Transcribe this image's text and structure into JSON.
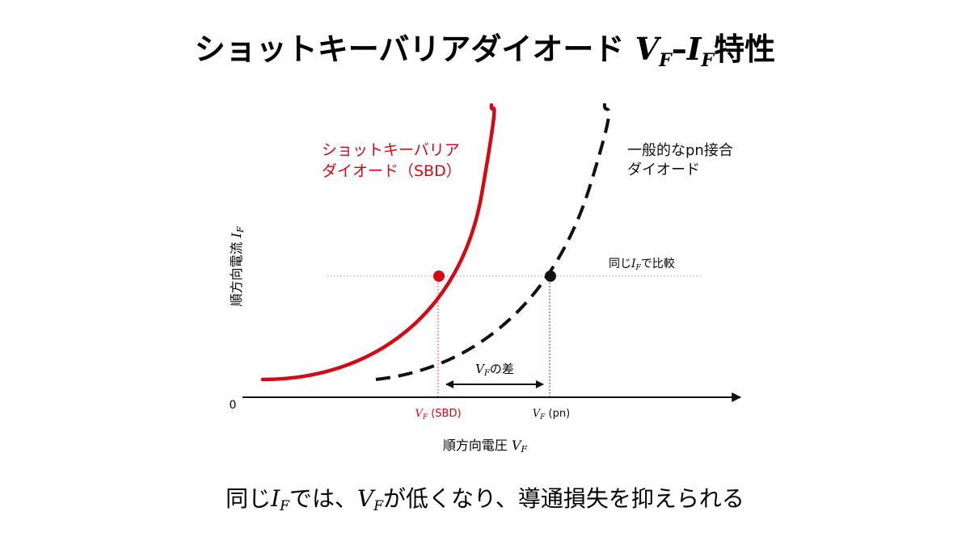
{
  "title": {
    "main": "ショットキーバリアダイオード ",
    "v": "V",
    "f1": "F",
    "dash": "–",
    "i": "I",
    "f2": "F",
    "suffix": "特性"
  },
  "axes": {
    "origin": "0",
    "x_label": "順方向電圧 ",
    "x_symbol": "V",
    "x_sub": "F",
    "y_label": "順方向電流 ",
    "y_symbol": "I",
    "y_sub": "F"
  },
  "curves": {
    "sbd_line1": "ショットキーバリア",
    "sbd_line2": "ダイオード（SBD）",
    "pn_line1": "一般的なpn接合",
    "pn_line2": "ダイオード"
  },
  "annotations": {
    "compare_pre": "同じ",
    "compare_sym": "I",
    "compare_sub": "F",
    "compare_post": "で比較",
    "diff_sym": "V",
    "diff_sub": "F",
    "diff_post": "の差",
    "vf_sbd_sym": "V",
    "vf_sbd_sub": "F",
    "vf_sbd_post": " (SBD)",
    "vf_pn_sym": "V",
    "vf_pn_sub": "F",
    "vf_pn_post": " (pn)"
  },
  "caption": {
    "pre": "同じ",
    "sym1": "I",
    "sub1": "F",
    "mid": "では、",
    "sym2": "V",
    "sub2": "F",
    "post": "が低くなり、導通損失を抑えられる"
  },
  "colors": {
    "sbd": "#d10a14",
    "pn": "#111111",
    "guide": "#999999",
    "text": "#111111"
  }
}
